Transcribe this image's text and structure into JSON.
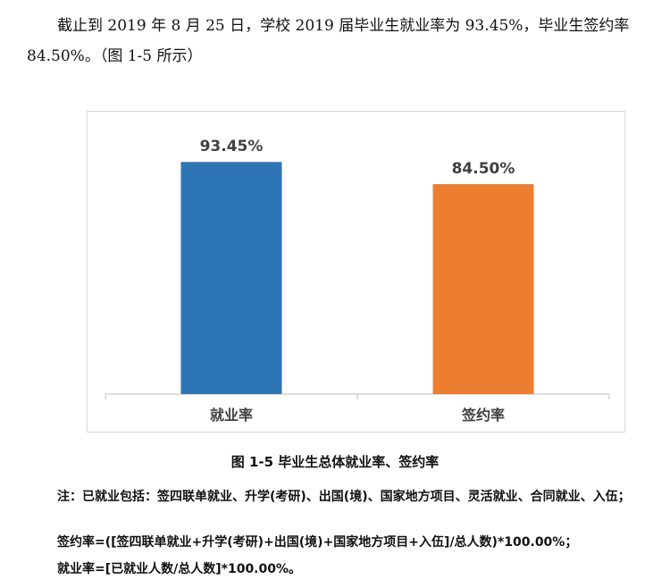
{
  "paragraph": "截止到 2019 年 8 月 25 日，学校 2019 届毕业生就业率为 93.45%，毕业生签约率 84.50%。（图 1-5 所示）",
  "caption": "图 1-5  毕业生总体就业率、签约率",
  "notes": {
    "line1": "注：已就业包括：签四联单就业、升学(考研)、出国(境)、国家地方项目、灵活就业、合同就业、入伍；",
    "line2": "签约率=([签四联单就业+升学(考研)+出国(境)+国家地方项目+入伍]/总人数)*100.00%；",
    "line3": "就业率=[已就业人数/总人数]*100.00%。"
  },
  "chart_data": {
    "type": "bar",
    "title": "",
    "xlabel": "",
    "ylabel": "",
    "categories": [
      "就业率",
      "签约率"
    ],
    "values": [
      93.45,
      84.5
    ],
    "data_labels": [
      "93.45%",
      "84.50%"
    ],
    "colors": [
      "#2E75B6",
      "#ED7D31"
    ],
    "ylim": [
      0,
      100
    ],
    "grid": false,
    "legend": "none"
  }
}
